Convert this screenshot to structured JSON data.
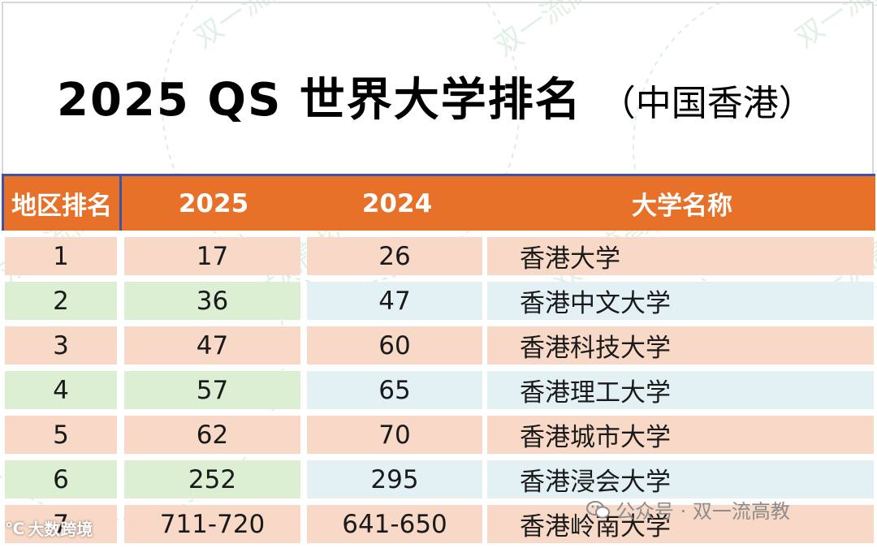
{
  "title": {
    "main": "2025 QS 世界大学排名",
    "sub": "（中国香港）"
  },
  "table": {
    "headers": [
      "地区排名",
      "2025",
      "2024",
      "大学名称"
    ],
    "rows": [
      {
        "region_rank": "1",
        "rank_2025": "17",
        "rank_2024": "26",
        "name": "香港大学"
      },
      {
        "region_rank": "2",
        "rank_2025": "36",
        "rank_2024": "47",
        "name": "香港中文大学"
      },
      {
        "region_rank": "3",
        "rank_2025": "47",
        "rank_2024": "60",
        "name": "香港科技大学"
      },
      {
        "region_rank": "4",
        "rank_2025": "57",
        "rank_2024": "65",
        "name": "香港理工大学"
      },
      {
        "region_rank": "5",
        "rank_2025": "62",
        "rank_2024": "70",
        "name": "香港城市大学"
      },
      {
        "region_rank": "6",
        "rank_2025": "252",
        "rank_2024": "295",
        "name": "香港浸会大学"
      },
      {
        "region_rank": "7",
        "rank_2025": "711-720",
        "rank_2024": "641-650",
        "name": "香港岭南大学"
      }
    ]
  },
  "watermarks": {
    "background_text": "双一流高校",
    "wechat": "公众号 · 双一流高教",
    "corner": "大数跨境"
  },
  "colors": {
    "header_bg": "#e8712a",
    "header_border": "#3a53a4",
    "row_salmon": "#f8d8c6",
    "row_green": "#dcefd3",
    "row_lightblue": "#e4f1f4"
  }
}
